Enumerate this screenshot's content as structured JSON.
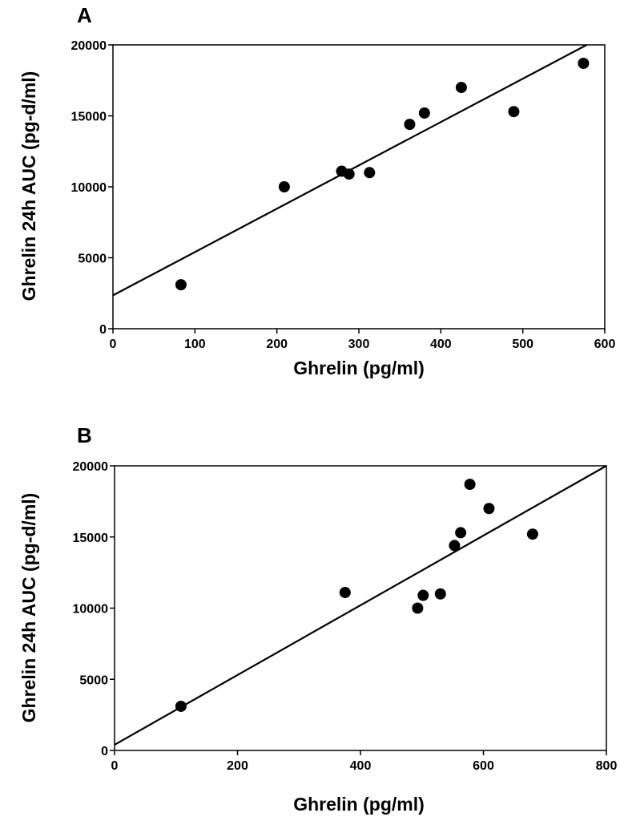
{
  "chart_data": [
    {
      "type": "scatter",
      "panel_label": "A",
      "title": "",
      "xlabel": "Ghrelin (pg/ml)",
      "ylabel": "Ghrelin 24h AUC (pg-d/ml)",
      "xlim": [
        0,
        600
      ],
      "ylim": [
        0,
        20000
      ],
      "xticks": [
        0,
        100,
        200,
        300,
        400,
        500,
        600
      ],
      "yticks": [
        0,
        5000,
        10000,
        15000,
        20000
      ],
      "grid": false,
      "legend": "none",
      "points": [
        {
          "x": 83,
          "y": 3100
        },
        {
          "x": 209,
          "y": 10000
        },
        {
          "x": 279,
          "y": 11100
        },
        {
          "x": 288,
          "y": 10900
        },
        {
          "x": 313,
          "y": 11000
        },
        {
          "x": 362,
          "y": 14400
        },
        {
          "x": 380,
          "y": 15200
        },
        {
          "x": 425,
          "y": 17000
        },
        {
          "x": 489,
          "y": 15300
        },
        {
          "x": 574,
          "y": 18700
        }
      ],
      "fit_line": {
        "x": [
          0,
          578
        ],
        "y": [
          2350,
          20000
        ]
      }
    },
    {
      "type": "scatter",
      "panel_label": "B",
      "title": "",
      "xlabel": "Ghrelin (pg/ml)",
      "ylabel": "Ghrelin 24h AUC (pg-d/ml)",
      "xlim": [
        0,
        800
      ],
      "ylim": [
        0,
        20000
      ],
      "xticks": [
        0,
        200,
        400,
        600,
        800
      ],
      "yticks": [
        0,
        5000,
        10000,
        15000,
        20000
      ],
      "grid": false,
      "legend": "none",
      "points": [
        {
          "x": 108,
          "y": 3100
        },
        {
          "x": 375,
          "y": 11100
        },
        {
          "x": 493,
          "y": 10000
        },
        {
          "x": 502,
          "y": 10900
        },
        {
          "x": 530,
          "y": 11000
        },
        {
          "x": 553,
          "y": 14400
        },
        {
          "x": 563,
          "y": 15300
        },
        {
          "x": 578,
          "y": 18700
        },
        {
          "x": 609,
          "y": 17000
        },
        {
          "x": 680,
          "y": 15200
        }
      ],
      "fit_line": {
        "x": [
          0,
          800
        ],
        "y": [
          400,
          20000
        ]
      }
    }
  ]
}
